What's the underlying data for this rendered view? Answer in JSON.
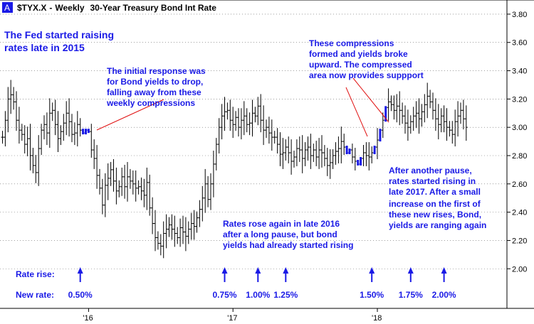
{
  "header": {
    "badge": "A",
    "symbol": "$TYX.X",
    "separator": "-",
    "period": "Weekly",
    "name": "30-Year Treasury Bond Int Rate"
  },
  "annotations": {
    "fed_line1": "The Fed started raising",
    "fed_line2": "rates late in 2015",
    "initial_line1": "The initial response was",
    "initial_line2": "for Bond yields to drop,",
    "initial_line3": "falling away from these",
    "initial_line4": "weekly compressions",
    "comp_line1": "These compressions",
    "comp_line2": "formed and yields broke",
    "comp_line3": "upward. The compressed",
    "comp_line4": "area now provides suppport",
    "rose_line1": "Rates rose again in late 2016",
    "rose_line2": "after a long pause, but bond",
    "rose_line3": "yields had already started rising",
    "pause_line1": "After another pause,",
    "pause_line2": "rates started rising in",
    "pause_line3": "late 2017. After a small",
    "pause_line4": "increase on the first of",
    "pause_line5": "these new rises, Bond,",
    "pause_line6": "yields are ranging again",
    "rate_rise_label": "Rate rise:",
    "new_rate_label": "New rate:"
  },
  "colors": {
    "annotation": "#1a1ae6",
    "bars": "#000000",
    "compression_bars": "#1a1ae6",
    "callout_lines": "#e01010",
    "badge_bg": "#1a1ae6",
    "grid": "#666666"
  },
  "chart_data": {
    "type": "ohlc",
    "title": "$TYX.X - Weekly 30-Year Treasury Bond Int Rate",
    "xlabel": "",
    "ylabel": "",
    "ylim": [
      1.72,
      3.9
    ],
    "y_ticks": [
      "2.00",
      "2.20",
      "2.40",
      "2.60",
      "2.80",
      "3.00",
      "3.20",
      "3.40",
      "3.60",
      "3.80"
    ],
    "x_ticks": [
      {
        "label": "'16",
        "week": 31
      },
      {
        "label": "'17",
        "week": 83
      },
      {
        "label": "'18",
        "week": 135
      }
    ],
    "grid": true,
    "y_axis_side": "right",
    "rate_rises": [
      {
        "week": 28,
        "rate": "0.50%"
      },
      {
        "week": 80,
        "rate": "0.75%"
      },
      {
        "week": 92,
        "rate": "1.00%"
      },
      {
        "week": 102,
        "rate": "1.25%"
      },
      {
        "week": 133,
        "rate": "1.50%"
      },
      {
        "week": 147,
        "rate": "1.75%"
      },
      {
        "week": 159,
        "rate": "2.00%"
      }
    ],
    "compression_weeks": [
      29,
      30,
      31,
      124,
      125,
      128,
      129,
      134,
      136,
      138
    ],
    "closes": [
      2.93,
      3.05,
      3.2,
      3.23,
      3.18,
      3.05,
      2.98,
      2.95,
      2.88,
      2.92,
      2.8,
      2.73,
      2.68,
      2.85,
      2.98,
      3.02,
      2.96,
      3.1,
      3.12,
      3.02,
      2.92,
      2.97,
      3.03,
      3.1,
      3.04,
      2.95,
      2.96,
      3.02,
      2.98,
      2.96,
      2.98,
      2.97,
      2.84,
      2.78,
      2.66,
      2.57,
      2.45,
      2.59,
      2.64,
      2.7,
      2.62,
      2.55,
      2.58,
      2.65,
      2.58,
      2.65,
      2.62,
      2.6,
      2.57,
      2.58,
      2.55,
      2.52,
      2.61,
      2.43,
      2.32,
      2.22,
      2.18,
      2.16,
      2.25,
      2.28,
      2.31,
      2.28,
      2.25,
      2.22,
      2.29,
      2.26,
      2.23,
      2.28,
      2.32,
      2.3,
      2.36,
      2.42,
      2.5,
      2.6,
      2.49,
      2.6,
      2.74,
      2.88,
      3.0,
      3.08,
      3.11,
      3.12,
      3.05,
      3.02,
      3.07,
      3.0,
      3.05,
      3.08,
      3.02,
      3.03,
      3.1,
      3.08,
      3.15,
      3.05,
      2.98,
      3.0,
      2.96,
      2.93,
      2.93,
      2.88,
      2.81,
      2.82,
      2.86,
      2.82,
      2.76,
      2.79,
      2.85,
      2.84,
      2.78,
      2.84,
      2.86,
      2.8,
      2.84,
      2.79,
      2.84,
      2.82,
      2.78,
      2.73,
      2.75,
      2.8,
      2.83,
      2.85,
      2.9,
      2.86,
      2.82,
      2.84,
      2.79,
      2.76,
      2.74,
      2.78,
      2.82,
      2.8,
      2.79,
      2.82,
      2.86,
      2.91,
      2.98,
      3.05,
      3.14,
      3.18,
      3.16,
      3.12,
      3.15,
      3.12,
      3.08,
      3.03,
      3.0,
      3.04,
      3.08,
      3.1,
      3.06,
      3.11,
      3.16,
      3.22,
      3.18,
      3.12,
      3.06,
      3.02,
      3.08,
      3.04,
      3.0,
      2.98,
      2.95,
      3.04,
      3.08,
      3.12,
      3.06,
      3.0
    ]
  }
}
